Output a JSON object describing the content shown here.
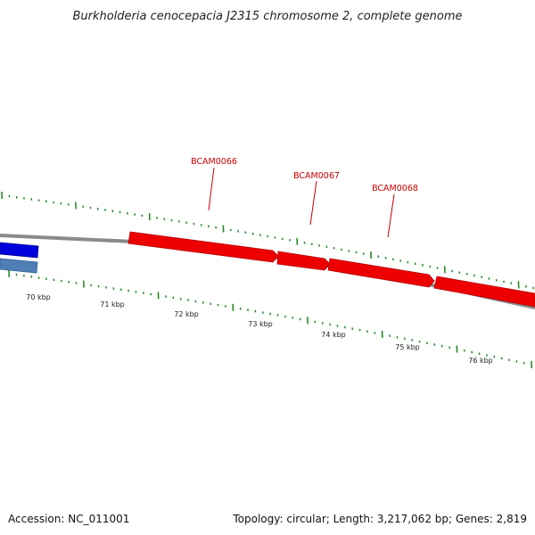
{
  "title": "Burkholderia cenocepacia J2315 chromosome 2, complete genome",
  "footer": {
    "accession": "Accession: NC_011001",
    "summary": "Topology: circular; Length: 3,217,062 bp; Genes: 2,819"
  },
  "colors": {
    "backbone": "#8a8a8a",
    "forward_gene": "#ee0000",
    "reverse_gene_dark": "#0000dd",
    "reverse_gene_light": "#4f7fb5",
    "tick": "#2a8a2a",
    "gene_label": "#cc0000"
  },
  "gene_labels": [
    "BCAM0066",
    "BCAM0067",
    "BCAM0068"
  ],
  "scale_labels": [
    "70 kbp",
    "71 kbp",
    "72 kbp",
    "73 kbp",
    "74 kbp",
    "75 kbp",
    "76 kbp"
  ]
}
